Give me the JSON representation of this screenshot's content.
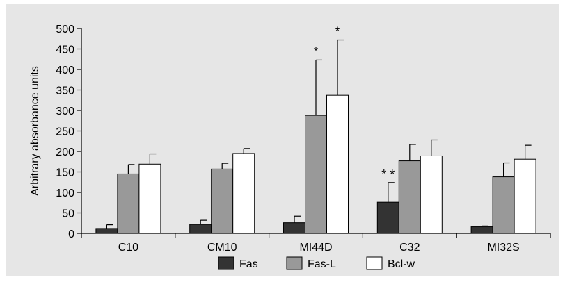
{
  "chart_data": {
    "type": "bar",
    "ylabel": "Arbitrary absorbance units",
    "xlabel": "",
    "ylim": [
      0,
      500
    ],
    "yticks": [
      0,
      50,
      100,
      150,
      200,
      250,
      300,
      350,
      400,
      450,
      500
    ],
    "categories": [
      "C10",
      "CM10",
      "MI44D",
      "C32",
      "MI32S"
    ],
    "series": [
      {
        "name": "Fas",
        "color": "#333333",
        "values": [
          12,
          22,
          26,
          76,
          16
        ],
        "error": [
          9,
          10,
          16,
          48,
          2
        ]
      },
      {
        "name": "Fas-L",
        "color": "#999999",
        "values": [
          145,
          157,
          288,
          177,
          138
        ],
        "error": [
          23,
          14,
          135,
          40,
          34
        ]
      },
      {
        "name": "Bcl-w",
        "color": "#ffffff",
        "values": [
          169,
          195,
          337,
          189,
          181
        ],
        "error": [
          25,
          12,
          135,
          39,
          34
        ]
      }
    ],
    "annotations": [
      {
        "text": "* *",
        "category": "C32",
        "series": "Fas"
      },
      {
        "text": "*",
        "category": "MI44D",
        "series": "Fas-L"
      },
      {
        "text": "*",
        "category": "MI44D",
        "series": "Bcl-w"
      }
    ],
    "grid": false,
    "legend": "bottom"
  }
}
